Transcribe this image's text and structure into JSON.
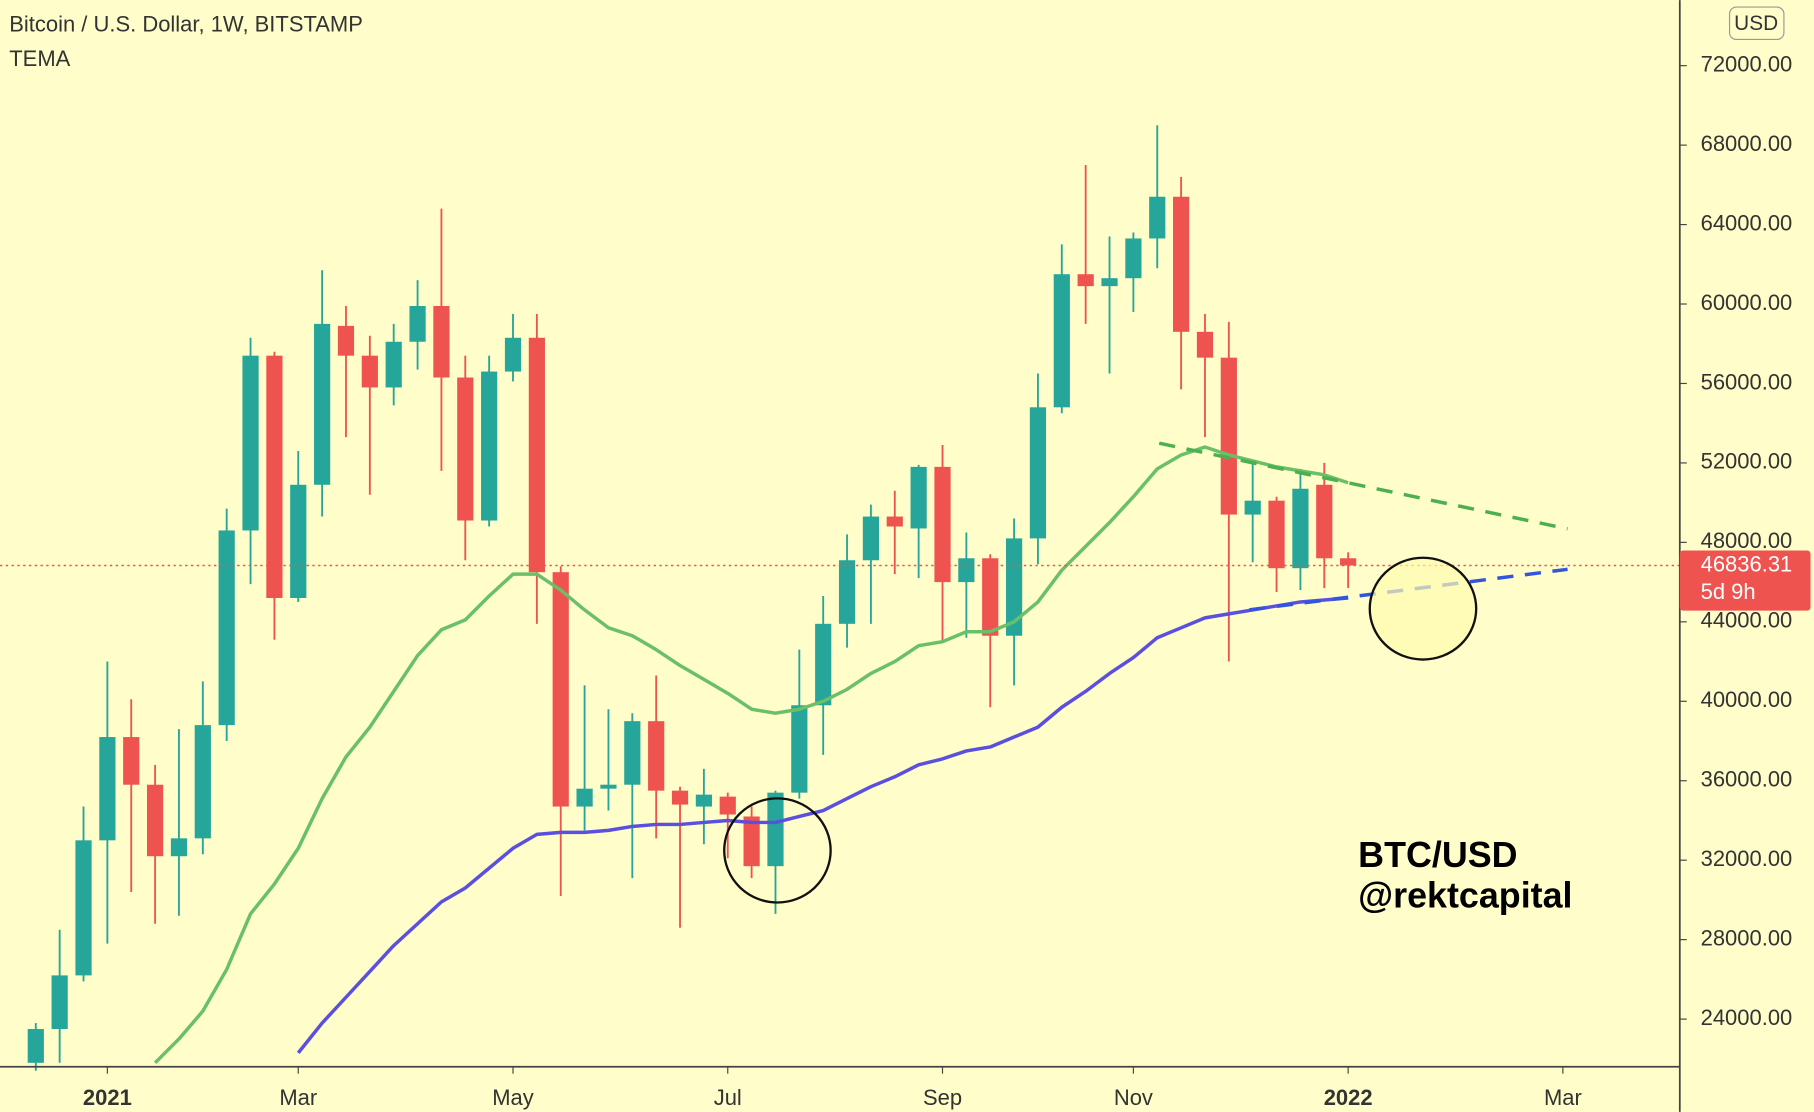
{
  "chart_data": {
    "type": "candlestick",
    "title": "Bitcoin / U.S. Dollar, 1W, BITSTAMP",
    "indicator": "TEMA",
    "currency": "USD",
    "annotation": [
      "BTC/USD",
      "@rektcapital"
    ],
    "countdown": "5d 9h",
    "up_color": "#26a69a",
    "down_color": "#ef5350",
    "x": [
      0,
      1,
      2,
      3,
      4,
      5,
      6,
      7,
      8,
      9,
      10,
      11,
      12,
      13,
      14,
      15,
      16,
      17,
      18,
      19,
      20,
      21,
      22,
      23,
      24,
      25,
      26,
      27,
      28,
      29,
      30,
      31,
      32,
      33,
      34,
      35,
      36,
      37,
      38,
      39,
      40,
      41,
      42,
      43,
      44,
      45,
      46,
      47,
      48,
      49,
      50,
      51,
      52,
      53,
      54,
      55
    ],
    "open": [
      21800,
      23500,
      26200,
      33000,
      38200,
      35800,
      32200,
      33100,
      38800,
      48600,
      57400,
      45200,
      50900,
      58900,
      57400,
      55800,
      58100,
      59900,
      56300,
      49100,
      56600,
      58300,
      46500,
      34700,
      35600,
      35800,
      39000,
      35500,
      34700,
      35200,
      34200,
      31700,
      35400,
      39800,
      43900,
      47100,
      49300,
      48700,
      51800,
      46000,
      47200,
      43300,
      48200,
      54800,
      61500,
      60900,
      61300,
      63300,
      65400,
      58600,
      57300,
      49400,
      50100,
      46700,
      50900,
      47200
    ],
    "high": [
      23800,
      28500,
      34700,
      42000,
      40100,
      36800,
      38600,
      41000,
      49700,
      58300,
      57600,
      52600,
      61700,
      59900,
      58400,
      59000,
      61200,
      64800,
      57400,
      57400,
      59500,
      59500,
      46800,
      40800,
      39600,
      39400,
      41300,
      35700,
      36600,
      35400,
      34700,
      35500,
      42600,
      45300,
      48400,
      49900,
      50600,
      51900,
      52900,
      48500,
      47400,
      49200,
      56500,
      63000,
      67000,
      63400,
      63600,
      69000,
      66400,
      59500,
      59100,
      52000,
      50300,
      51700,
      52000,
      47500
    ],
    "low": [
      21400,
      21800,
      25900,
      27800,
      30400,
      28800,
      29200,
      32300,
      38000,
      45900,
      43100,
      45000,
      49300,
      53300,
      50400,
      54900,
      56700,
      51600,
      47100,
      48800,
      56100,
      43900,
      30200,
      33500,
      34500,
      31100,
      33100,
      28600,
      32800,
      32100,
      31100,
      29300,
      35100,
      37300,
      42700,
      43900,
      46400,
      46200,
      43000,
      43200,
      39700,
      40800,
      46900,
      54500,
      59000,
      56500,
      59600,
      61800,
      55700,
      53300,
      42000,
      47000,
      45500,
      45600,
      45700,
      45700
    ],
    "close": [
      23500,
      26200,
      33000,
      38200,
      35800,
      32200,
      33100,
      38800,
      48600,
      57400,
      45200,
      50900,
      59000,
      57400,
      55800,
      58100,
      59900,
      56300,
      49100,
      56600,
      58300,
      46500,
      34700,
      35600,
      35800,
      39000,
      35500,
      34800,
      35300,
      34300,
      31700,
      35400,
      39800,
      43900,
      47100,
      49300,
      48800,
      51800,
      46000,
      47200,
      43300,
      48200,
      54800,
      61500,
      60900,
      61300,
      63300,
      65400,
      58600,
      57300,
      49400,
      50100,
      46700,
      50700,
      47200,
      46836.31
    ],
    "lines": [
      {
        "color": "#6abf69",
        "values": [
          null,
          null,
          null,
          null,
          null,
          21800,
          23000,
          24400,
          26500,
          29300,
          30800,
          32600,
          35100,
          37200,
          38700,
          40500,
          42300,
          43600,
          44100,
          45300,
          46400,
          46400,
          45600,
          44600,
          43700,
          43300,
          42600,
          41800,
          41100,
          40400,
          39600,
          39400,
          39600,
          40000,
          40600,
          41400,
          42000,
          42800,
          43000,
          43500,
          43500,
          44000,
          45000,
          46600,
          47800,
          49000,
          50300,
          51700,
          52400,
          52800,
          52400,
          52100,
          51800,
          51600,
          51400,
          51000
        ]
      },
      {
        "color": "#5b4fe0",
        "values": [
          null,
          null,
          null,
          null,
          null,
          null,
          null,
          null,
          null,
          null,
          null,
          22300,
          23800,
          25100,
          26400,
          27700,
          28800,
          29900,
          30600,
          31600,
          32600,
          33300,
          33400,
          33400,
          33500,
          33700,
          33800,
          33800,
          33900,
          34000,
          33900,
          33900,
          34200,
          34500,
          35100,
          35700,
          36200,
          36800,
          37100,
          37500,
          37700,
          38200,
          38700,
          39700,
          40500,
          41400,
          42200,
          43200,
          43700,
          44200,
          44400,
          44600,
          44800,
          45000,
          45100,
          45200
        ]
      }
    ],
    "xlim": [
      -1.5,
      68.9
    ],
    "xticks": [
      {
        "value": 3,
        "label": "2021"
      },
      {
        "value": 11,
        "label": "Mar"
      },
      {
        "value": 20,
        "label": "May"
      },
      {
        "value": 29,
        "label": "Jul"
      },
      {
        "value": 38,
        "label": "Sep"
      },
      {
        "value": 46,
        "label": "Nov"
      },
      {
        "value": 55,
        "label": "2022"
      },
      {
        "value": 64,
        "label": "Mar"
      }
    ],
    "ylim": [
      21600,
      75300
    ],
    "yticks": [
      {
        "value": 24000,
        "label": "24000.00"
      },
      {
        "value": 28000,
        "label": "28000.00"
      },
      {
        "value": 32000,
        "label": "32000.00"
      },
      {
        "value": 36000,
        "label": "36000.00"
      },
      {
        "value": 40000,
        "label": "40000.00"
      },
      {
        "value": 44000,
        "label": "44000.00"
      },
      {
        "value": 48000,
        "label": "48000.00"
      },
      {
        "value": 52000,
        "label": "52000.00"
      },
      {
        "value": 56000,
        "label": "56000.00"
      },
      {
        "value": 60000,
        "label": "60000.00"
      },
      {
        "value": 64000,
        "label": "64000.00"
      },
      {
        "value": 68000,
        "label": "68000.00"
      },
      {
        "value": 72000,
        "label": "72000.00"
      }
    ],
    "grid": false
  }
}
